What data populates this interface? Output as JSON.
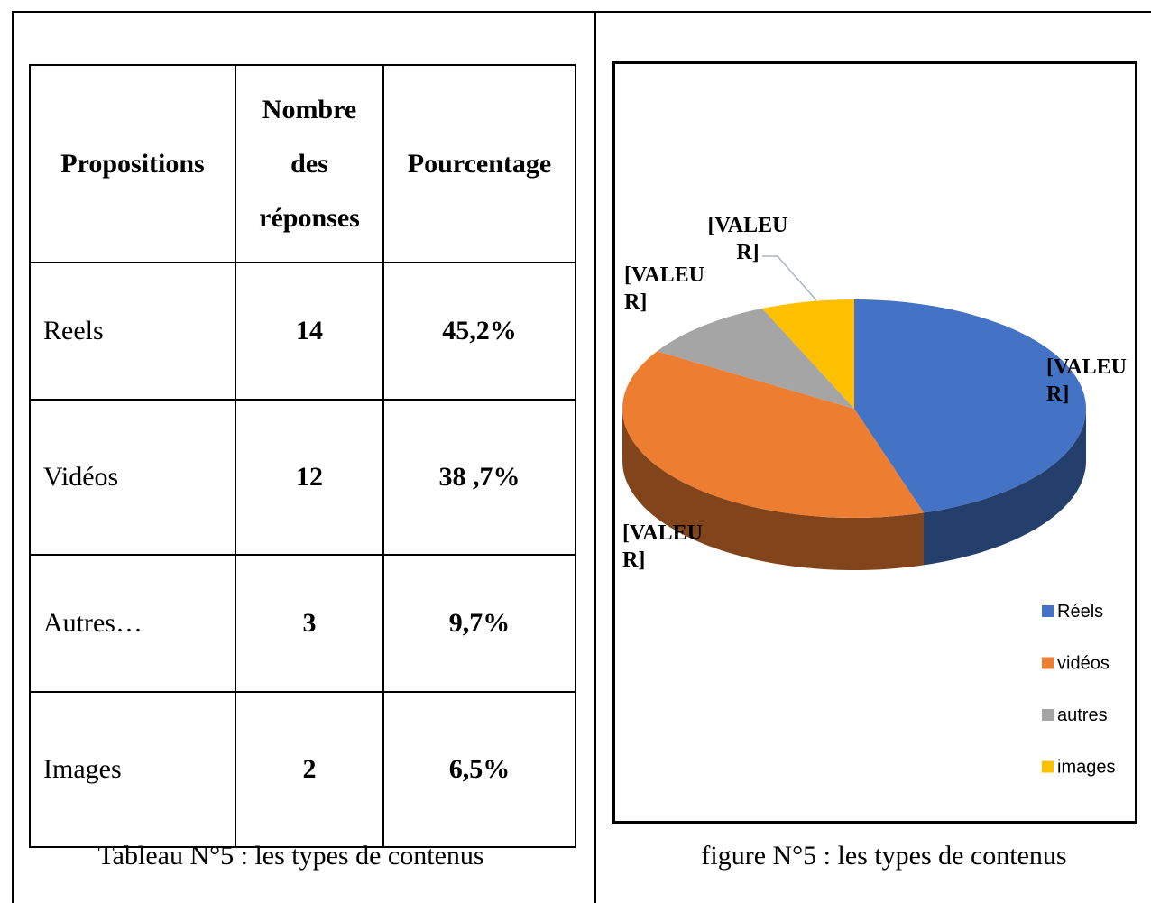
{
  "table": {
    "header": [
      "Propositions",
      "Nombre des réponses",
      "Pourcentage"
    ],
    "rows": [
      [
        "Reels",
        "14",
        "45,2%"
      ],
      [
        "Vidéos",
        "12",
        "38 ,7%"
      ],
      [
        "Autres…",
        "3",
        "9,7%"
      ],
      [
        "Images",
        "2",
        "6,5%"
      ]
    ],
    "caption": "Tableau N°5 :  les types de contenus"
  },
  "chart_data": {
    "type": "pie",
    "categories": [
      "Réels",
      "vidéos",
      "autres",
      "images"
    ],
    "values": [
      45.2,
      38.7,
      9.7,
      6.5
    ],
    "colors": [
      "#4472c4",
      "#ed7d31",
      "#a5a5a5",
      "#ffc000"
    ],
    "value_labels": [
      "[VALEUR]",
      "[VALEUR]",
      "[VALEUR]",
      "[VALEUR]"
    ],
    "legend": "right",
    "caption": "figure N°5 : les types de contenus"
  }
}
